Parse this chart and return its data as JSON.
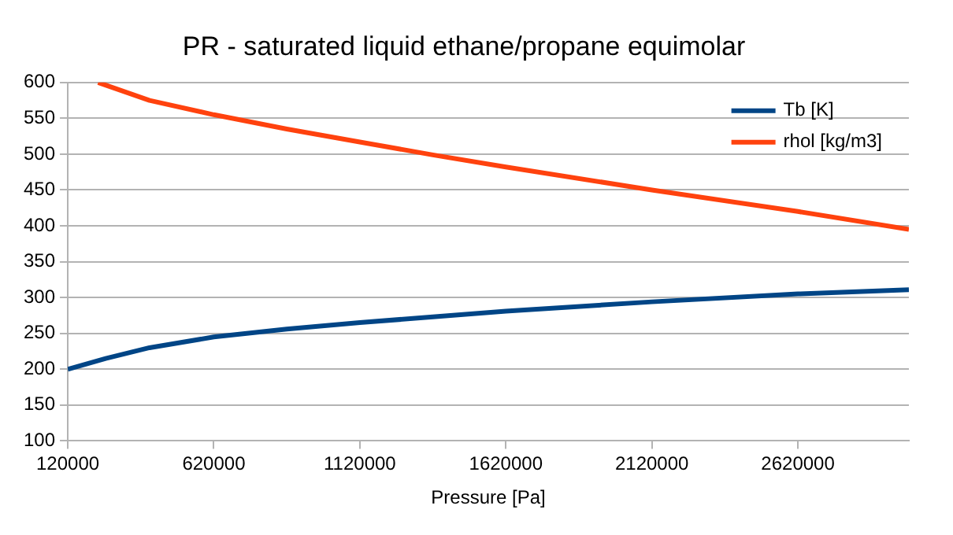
{
  "chart_data": {
    "type": "line",
    "title": "PR - saturated liquid ethane/propane equimolar",
    "xlabel": "Pressure [Pa]",
    "series": [
      {
        "name": "Tb [K]",
        "color": "#004586",
        "x": [
          120000,
          250000,
          400000,
          620000,
          870000,
          1120000,
          1370000,
          1620000,
          2120000,
          2620000,
          3000000
        ],
        "values": [
          200,
          215,
          230,
          245,
          256,
          265,
          273,
          281,
          294,
          305,
          311
        ]
      },
      {
        "name": "rhol [kg/m3]",
        "color": "#ff420e",
        "x": [
          224000,
          400000,
          620000,
          870000,
          1120000,
          1370000,
          1620000,
          2120000,
          2620000,
          3000000
        ],
        "values": [
          600,
          575,
          555,
          535,
          517,
          499,
          482,
          450,
          420,
          395
        ]
      }
    ],
    "xlim": [
      120000,
      3000000
    ],
    "xticks": [
      120000,
      620000,
      1120000,
      1620000,
      2120000,
      2620000
    ],
    "ylim": [
      100,
      600
    ],
    "yticks": [
      100,
      150,
      200,
      250,
      300,
      350,
      400,
      450,
      500,
      550,
      600
    ],
    "grid": "y",
    "legend": "top right",
    "marker": "none",
    "line_style": "solid"
  }
}
